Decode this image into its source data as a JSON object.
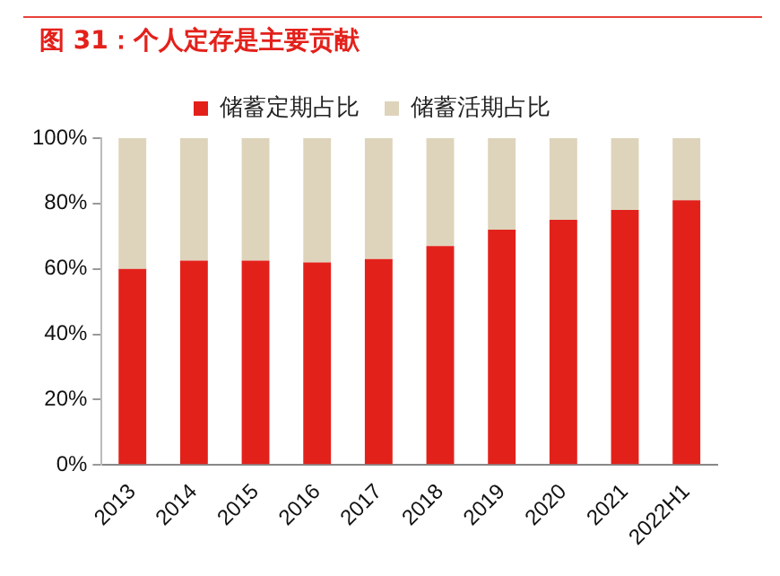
{
  "chart_data": {
    "type": "bar",
    "title": "图 31：个人定存是主要贡献",
    "categories": [
      "2013",
      "2014",
      "2015",
      "2016",
      "2017",
      "2018",
      "2019",
      "2020",
      "2021",
      "2022H1"
    ],
    "series": [
      {
        "name": "储蓄定期占比",
        "color": "#e3211b",
        "values": [
          60,
          62.5,
          62.5,
          62,
          63,
          67,
          72,
          75,
          78,
          81
        ]
      },
      {
        "name": "储蓄活期占比",
        "color": "#ded4bb",
        "values": [
          40,
          37.5,
          37.5,
          38,
          37,
          33,
          28,
          25,
          22,
          19
        ]
      }
    ],
    "stacked": true,
    "ylim": [
      0,
      100
    ],
    "yticks": [
      {
        "value": 0,
        "label": "0%"
      },
      {
        "value": 20,
        "label": "20%"
      },
      {
        "value": 40,
        "label": "40%"
      },
      {
        "value": 60,
        "label": "60%"
      },
      {
        "value": 80,
        "label": "80%"
      },
      {
        "value": 100,
        "label": "100%"
      }
    ],
    "grid": false,
    "legend": "top"
  }
}
